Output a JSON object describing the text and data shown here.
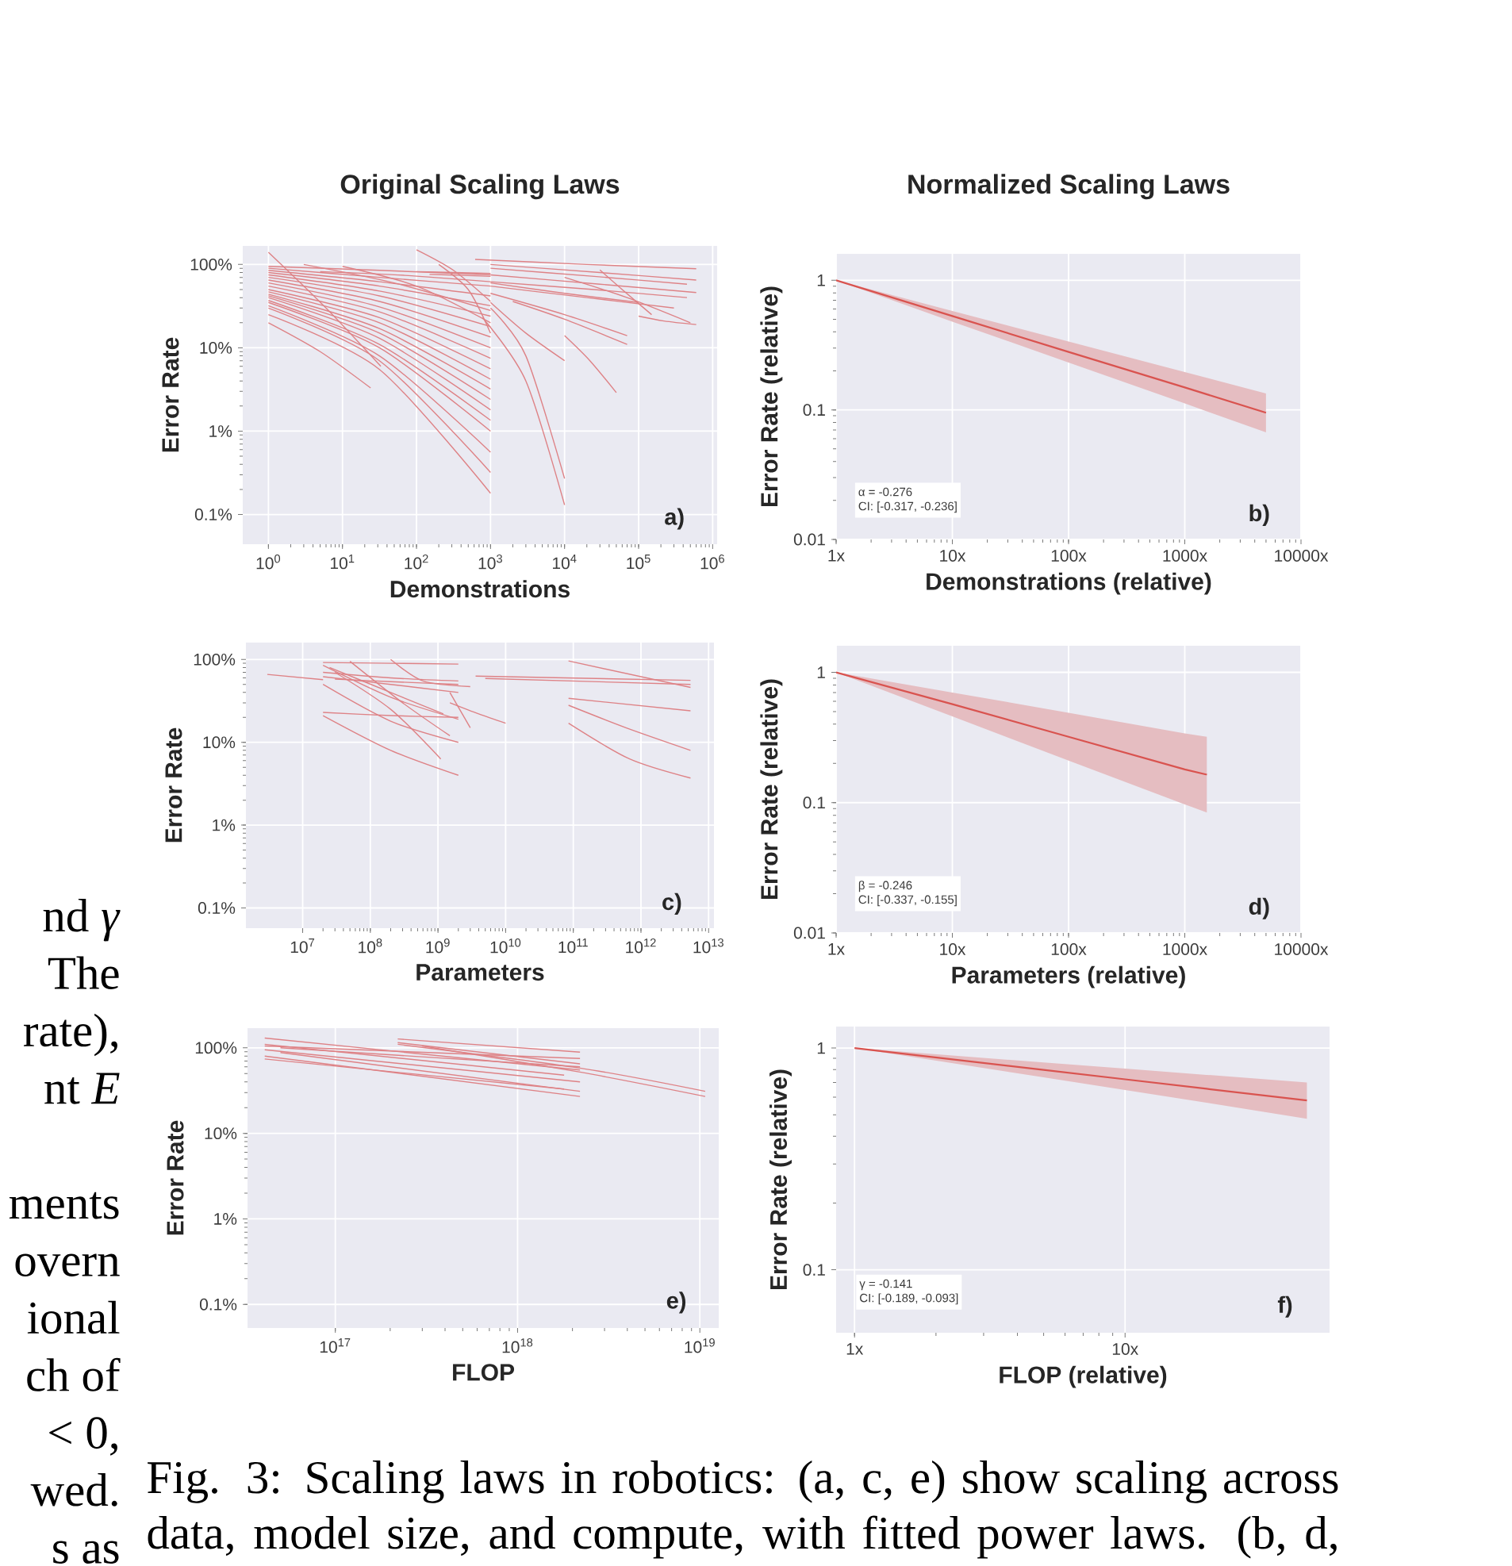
{
  "chart_data": [
    {
      "type": "line",
      "title": "Original Scaling Laws",
      "xlabel": "Demonstrations",
      "ylabel": "Error Rate",
      "log": "xy",
      "grid": true,
      "color": "#de8286",
      "xlim": [
        0.45,
        1150000
      ],
      "ylim": [
        0.044,
        167
      ],
      "xticks": [
        {
          "value": 1,
          "label": "10$^{0}$"
        },
        {
          "value": 10,
          "label": "10$^{1}$"
        },
        {
          "value": 100,
          "label": "10$^{2}$"
        },
        {
          "value": 1000,
          "label": "10$^{3}$"
        },
        {
          "value": 10000,
          "label": "10$^{4}$"
        },
        {
          "value": 100000,
          "label": "10$^{5}$"
        },
        {
          "value": 1000000,
          "label": "10$^{6}$"
        }
      ],
      "yticks": [
        {
          "value": 0.1,
          "label": "0.1%"
        },
        {
          "value": 1,
          "label": "1%"
        },
        {
          "value": 10,
          "label": "10%"
        },
        {
          "value": 100,
          "label": "100%"
        }
      ],
      "series": [
        {
          "x": [
            1,
            31.6,
            1000
          ],
          "values": [
            95,
            85,
            75
          ]
        },
        {
          "x": [
            1,
            31.6,
            1000
          ],
          "values": [
            90,
            70,
            55
          ]
        },
        {
          "x": [
            1,
            31.6,
            1000
          ],
          "values": [
            85,
            62,
            42
          ]
        },
        {
          "x": [
            1,
            31.6,
            1000
          ],
          "values": [
            80,
            55,
            32
          ]
        },
        {
          "x": [
            1,
            31.6,
            1000
          ],
          "values": [
            75,
            48,
            24
          ]
        },
        {
          "x": [
            1,
            31.6,
            1000
          ],
          "values": [
            70,
            42,
            18
          ]
        },
        {
          "x": [
            1,
            31.6,
            1000
          ],
          "values": [
            65,
            36,
            13.5
          ]
        },
        {
          "x": [
            1,
            31.6,
            1000
          ],
          "values": [
            60,
            31,
            10
          ]
        },
        {
          "x": [
            1,
            31.6,
            1000
          ],
          "values": [
            55,
            27,
            7.5
          ]
        },
        {
          "x": [
            1,
            31.6,
            1000
          ],
          "values": [
            50,
            23,
            5.6
          ]
        },
        {
          "x": [
            1,
            31.6,
            1000
          ],
          "values": [
            47,
            20,
            4.2
          ]
        },
        {
          "x": [
            1,
            31.6,
            1000
          ],
          "values": [
            44,
            17,
            3.2
          ]
        },
        {
          "x": [
            1,
            31.6,
            1000
          ],
          "values": [
            42,
            15,
            2.4
          ]
        },
        {
          "x": [
            1,
            31.6,
            1000
          ],
          "values": [
            40,
            13,
            1.8
          ]
        },
        {
          "x": [
            1,
            31.6,
            1000
          ],
          "values": [
            37,
            11,
            1.35
          ]
        },
        {
          "x": [
            1,
            31.6,
            1000
          ],
          "values": [
            35,
            10,
            1.0
          ]
        },
        {
          "x": [
            1,
            31.6,
            1000
          ],
          "values": [
            32,
            8,
            0.56
          ]
        },
        {
          "x": [
            1,
            31.6,
            1000
          ],
          "values": [
            30,
            7,
            0.32
          ]
        },
        {
          "x": [
            1,
            31.6,
            1000
          ],
          "values": [
            25,
            5.5,
            0.18
          ]
        },
        {
          "x": [
            1,
            5,
            24
          ],
          "values": [
            20,
            9,
            3.3
          ]
        },
        {
          "x": [
            1,
            6,
            33
          ],
          "values": [
            140,
            30,
            6
          ]
        },
        {
          "x": [
            5,
            70,
            1000
          ],
          "values": [
            82,
            74,
            62
          ]
        },
        {
          "x": [
            3,
            50,
            1000
          ],
          "values": [
            100,
            60,
            28
          ]
        },
        {
          "x": [
            10,
            100,
            1000
          ],
          "values": [
            95,
            55,
            20
          ]
        },
        {
          "x": [
            100,
            316,
            1000
          ],
          "values": [
            82,
            80,
            78
          ]
        },
        {
          "x": [
            150,
            400,
            1000
          ],
          "values": [
            76,
            74,
            72
          ]
        },
        {
          "x": [
            100,
            316,
            1000
          ],
          "values": [
            150,
            85,
            36
          ]
        },
        {
          "x": [
            200,
            500,
            1000
          ],
          "values": [
            100,
            50,
            15
          ]
        },
        {
          "x": [
            620,
            20000,
            600000
          ],
          "values": [
            115,
            100,
            89
          ]
        },
        {
          "x": [
            1000,
            30000,
            600000
          ],
          "values": [
            100,
            80,
            65
          ]
        },
        {
          "x": [
            1000,
            30000,
            600000
          ],
          "values": [
            75,
            58,
            46
          ]
        },
        {
          "x": [
            1000,
            25000,
            450000
          ],
          "values": [
            90,
            72,
            58
          ]
        },
        {
          "x": [
            1000,
            25000,
            450000
          ],
          "values": [
            62,
            50,
            40
          ]
        },
        {
          "x": [
            1000,
            10000,
            100000
          ],
          "values": [
            60,
            45,
            35
          ]
        },
        {
          "x": [
            1000,
            10000,
            70000
          ],
          "values": [
            45,
            25,
            14
          ]
        },
        {
          "x": [
            2000,
            10000,
            70000
          ],
          "values": [
            36,
            22,
            11
          ]
        },
        {
          "x": [
            1000,
            3000,
            10000
          ],
          "values": [
            35,
            15,
            7
          ]
        },
        {
          "x": [
            1000,
            3000,
            10000
          ],
          "values": [
            30,
            8,
            0.27
          ]
        },
        {
          "x": [
            780,
            3000,
            10000
          ],
          "values": [
            23,
            4,
            0.13
          ]
        },
        {
          "x": [
            10000,
            22000,
            50000
          ],
          "values": [
            14,
            7,
            2.9
          ]
        },
        {
          "x": [
            10000,
            70000,
            500000
          ],
          "values": [
            70,
            40,
            20
          ]
        },
        {
          "x": [
            100000,
            220000,
            600000
          ],
          "values": [
            24,
            21,
            19
          ]
        },
        {
          "x": [
            30000,
            60000,
            150000
          ],
          "values": [
            86,
            50,
            25
          ]
        },
        {
          "x": [
            1000,
            20000,
            300000
          ],
          "values": [
            55,
            40,
            30
          ]
        }
      ],
      "annotations": [
        "a)"
      ]
    },
    {
      "type": "line",
      "title": "Normalized Scaling Laws",
      "xlabel": "Demonstrations (relative)",
      "ylabel": "Error Rate (relative)",
      "log": "xy",
      "grid": true,
      "color": "#d9534f",
      "xlim": [
        1,
        10000
      ],
      "ylim": [
        0.01,
        1.6
      ],
      "xticks": [
        {
          "value": 1,
          "label": "1x"
        },
        {
          "value": 10,
          "label": "10x"
        },
        {
          "value": 100,
          "label": "100x"
        },
        {
          "value": 1000,
          "label": "1000x"
        },
        {
          "value": 10000,
          "label": "10000x"
        }
      ],
      "yticks": [
        0.01,
        0.1,
        1
      ],
      "series": [
        {
          "x": [
            1,
            10,
            100,
            1000,
            5000
          ],
          "values": [
            1,
            0.53,
            0.28,
            0.149,
            0.095
          ],
          "lower": [
            1,
            0.48,
            0.232,
            0.112,
            0.067
          ],
          "upper": [
            1,
            0.58,
            0.337,
            0.196,
            0.134
          ]
        }
      ],
      "annotations": [
        "α = -0.276",
        "CI: [-0.317, -0.236]",
        "b)"
      ]
    },
    {
      "type": "line",
      "xlabel": "Parameters",
      "ylabel": "Error Rate",
      "log": "xy",
      "grid": true,
      "color": "#de8286",
      "xlim": [
        1450000,
        12000000000000.0
      ],
      "ylim": [
        0.057,
        160
      ],
      "xticks": [
        {
          "value": 10000000.0,
          "label": "10$^{7}$"
        },
        {
          "value": 100000000.0,
          "label": "10$^{8}$"
        },
        {
          "value": 1000000000.0,
          "label": "10$^{9}$"
        },
        {
          "value": 10000000000.0,
          "label": "10$^{10}$"
        },
        {
          "value": 100000000000.0,
          "label": "10$^{11}$"
        },
        {
          "value": 1000000000000.0,
          "label": "10$^{12}$"
        },
        {
          "value": 10000000000000.0,
          "label": "10$^{13}$"
        }
      ],
      "yticks": [
        {
          "value": 0.1,
          "label": "0.1%"
        },
        {
          "value": 1,
          "label": "1%"
        },
        {
          "value": 10,
          "label": "10%"
        },
        {
          "value": 100,
          "label": "100%"
        }
      ],
      "series": [
        {
          "x": [
            3000000.0,
            20000000.0
          ],
          "values": [
            66,
            57
          ]
        },
        {
          "x": [
            20000000.0,
            200000000.0,
            2000000000.0
          ],
          "values": [
            92,
            90,
            88
          ]
        },
        {
          "x": [
            20000000.0,
            200000000.0,
            2000000000.0
          ],
          "values": [
            70,
            60,
            55
          ]
        },
        {
          "x": [
            20000000.0,
            200000000.0,
            2000000000.0
          ],
          "values": [
            62,
            50,
            40
          ]
        },
        {
          "x": [
            30000000.0,
            200000000.0,
            2000000000.0
          ],
          "values": [
            58,
            54,
            50
          ]
        },
        {
          "x": [
            20000000.0,
            200000000.0,
            2000000000.0
          ],
          "values": [
            23,
            21,
            20
          ]
        },
        {
          "x": [
            20000000.0,
            200000000.0,
            2000000000.0
          ],
          "values": [
            85,
            35,
            19
          ]
        },
        {
          "x": [
            25000000.0,
            200000000.0,
            1200000000.0
          ],
          "values": [
            80,
            40,
            22
          ]
        },
        {
          "x": [
            20000000.0,
            200000000.0,
            2000000000.0
          ],
          "values": [
            21,
            8,
            4
          ]
        },
        {
          "x": [
            20000000.0,
            200000000.0,
            2000000000.0
          ],
          "values": [
            50,
            18,
            10
          ]
        },
        {
          "x": [
            30000000.0,
            200000000.0,
            1100000000.0
          ],
          "values": [
            70,
            25,
            6.3
          ]
        },
        {
          "x": [
            200000000.0,
            600000000.0,
            3000000000.0
          ],
          "values": [
            100,
            55,
            47
          ]
        },
        {
          "x": [
            50000000.0,
            300000000.0,
            1500000000.0
          ],
          "values": [
            95,
            30,
            12
          ]
        },
        {
          "x": [
            1500000000.0,
            4000000000.0,
            10000000000.0
          ],
          "values": [
            30,
            22,
            17
          ]
        },
        {
          "x": [
            1500000000.0,
            3000000000.0
          ],
          "values": [
            40,
            15
          ]
        },
        {
          "x": [
            3600000000.0,
            5400000000000.0
          ],
          "values": [
            63,
            56
          ]
        },
        {
          "x": [
            5000000000.0,
            5400000000000.0
          ],
          "values": [
            59,
            50
          ]
        },
        {
          "x": [
            85000000000.0,
            5400000000000.0
          ],
          "values": [
            96,
            46
          ]
        },
        {
          "x": [
            85000000000.0,
            5400000000000.0
          ],
          "values": [
            34,
            24
          ]
        },
        {
          "x": [
            85000000000.0,
            600000000000.0,
            5400000000000.0
          ],
          "values": [
            28,
            15,
            8
          ]
        },
        {
          "x": [
            85000000000.0,
            680000000000.0,
            5400000000000.0
          ],
          "values": [
            17,
            6.3,
            3.7
          ]
        }
      ],
      "annotations": [
        "c)"
      ]
    },
    {
      "type": "line",
      "xlabel": "Parameters (relative)",
      "ylabel": "Error Rate (relative)",
      "log": "xy",
      "grid": true,
      "color": "#d9534f",
      "xlim": [
        1,
        10000
      ],
      "ylim": [
        0.01,
        1.6
      ],
      "xticks": [
        {
          "value": 1,
          "label": "1x"
        },
        {
          "value": 10,
          "label": "10x"
        },
        {
          "value": 100,
          "label": "100x"
        },
        {
          "value": 1000,
          "label": "1000x"
        },
        {
          "value": 10000,
          "label": "10000x"
        }
      ],
      "yticks": [
        0.01,
        0.1,
        1
      ],
      "series": [
        {
          "x": [
            1,
            10,
            100,
            1000,
            1550
          ],
          "values": [
            1,
            0.57,
            0.32,
            0.18,
            0.164
          ],
          "lower": [
            1,
            0.46,
            0.21,
            0.097,
            0.084
          ],
          "upper": [
            1,
            0.7,
            0.49,
            0.34,
            0.32
          ]
        }
      ],
      "annotations": [
        "β = -0.246",
        "CI: [-0.337, -0.155]",
        "d)"
      ]
    },
    {
      "type": "line",
      "xlabel": "FLOP",
      "ylabel": "Error Rate",
      "log": "xy",
      "grid": true,
      "color": "#de8286",
      "xlim": [
        3.3e+16,
        1.27e+19
      ],
      "ylim": [
        0.053,
        170
      ],
      "xticks": [
        {
          "value": 1e+17,
          "label": "10$^{17}$"
        },
        {
          "value": 1e+18,
          "label": "10$^{18}$"
        },
        {
          "value": 1e+19,
          "label": "10$^{19}$"
        }
      ],
      "yticks": [
        {
          "value": 0.1,
          "label": "0.1%"
        },
        {
          "value": 1,
          "label": "1%"
        },
        {
          "value": 10,
          "label": "10%"
        },
        {
          "value": 100,
          "label": "100%"
        }
      ],
      "series": [
        {
          "x": [
            4.1e+16,
            2.2e+18
          ],
          "values": [
            130,
            55
          ]
        },
        {
          "x": [
            4.1e+16,
            2.2e+18
          ],
          "values": [
            105,
            75
          ]
        },
        {
          "x": [
            4.1e+16,
            2.2e+18
          ],
          "values": [
            95,
            40
          ]
        },
        {
          "x": [
            4.1e+16,
            2.2e+18
          ],
          "values": [
            80,
            27
          ]
        },
        {
          "x": [
            5e+16,
            2.2e+18
          ],
          "values": [
            100,
            60
          ]
        },
        {
          "x": [
            5e+16,
            2.2e+18
          ],
          "values": [
            88,
            31
          ]
        },
        {
          "x": [
            4.1e+16,
            1.8e+18
          ],
          "values": [
            110,
            48
          ]
        },
        {
          "x": [
            4.1e+16,
            1.8e+18
          ],
          "values": [
            74,
            33
          ]
        },
        {
          "x": [
            2.2e+17,
            2.2e+18
          ],
          "values": [
            127,
            89
          ]
        },
        {
          "x": [
            2.2e+17,
            2.2e+18
          ],
          "values": [
            115,
            65
          ]
        },
        {
          "x": [
            2.2e+17,
            2.2e+18,
            1.07e+19
          ],
          "values": [
            110,
            58,
            31
          ]
        },
        {
          "x": [
            3e+17,
            2.2e+18,
            1.07e+19
          ],
          "values": [
            105,
            52,
            27
          ]
        }
      ],
      "annotations": [
        "e)"
      ]
    },
    {
      "type": "line",
      "xlabel": "FLOP (relative)",
      "ylabel": "Error Rate (relative)",
      "log": "xy",
      "grid": true,
      "color": "#d9534f",
      "xlim": [
        0.855,
        57
      ],
      "ylim": [
        0.052,
        1.25
      ],
      "xticks": [
        {
          "value": 1,
          "label": "1x"
        },
        {
          "value": 10,
          "label": "10x"
        }
      ],
      "yticks": [
        0.1,
        1
      ],
      "series": [
        {
          "x": [
            1,
            5,
            10,
            20,
            47
          ],
          "values": [
            1,
            0.797,
            0.723,
            0.655,
            0.58
          ],
          "lower": [
            1,
            0.738,
            0.647,
            0.567,
            0.48
          ],
          "upper": [
            1,
            0.861,
            0.807,
            0.757,
            0.7
          ]
        }
      ],
      "annotations": [
        "γ = -0.141",
        "CI: [-0.189, -0.093]",
        "f)"
      ]
    },
    {
      "type": "other",
      "annotations": [
        "nd *γ*",
        "The",
        "rate),",
        "nt *E*",
        "ments",
        "overn",
        "ional",
        "ch of",
        "< 0,",
        "wed.",
        "s as",
        "Fig. 3: Scaling laws in robotics: (a, c, e) show scaling across",
        "data, model size, and compute, with fitted power laws. (b, d,"
      ]
    }
  ]
}
